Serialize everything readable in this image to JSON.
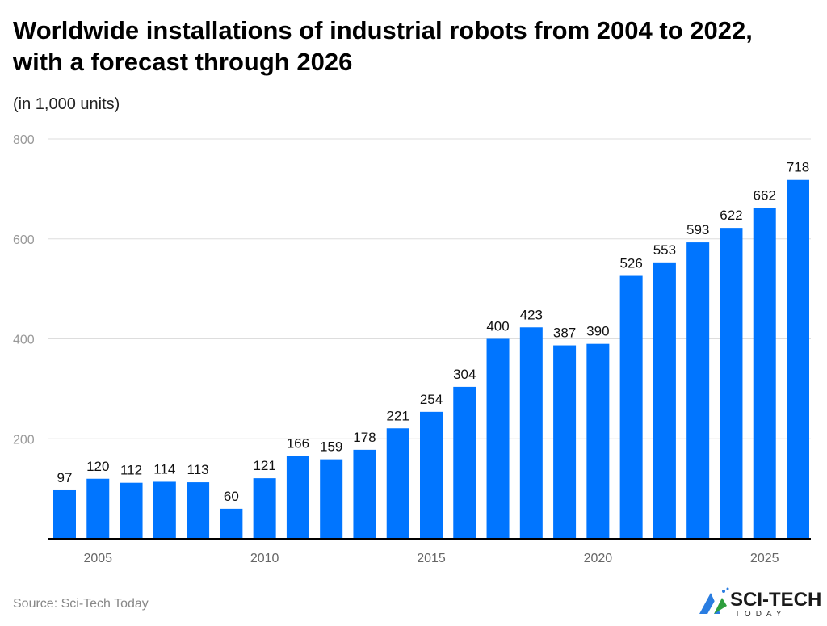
{
  "chart_data": {
    "type": "bar",
    "title": "Worldwide installations of industrial robots from 2004 to 2022, with a forecast through 2026",
    "subtitle": "(in 1,000 units)",
    "categories": [
      2004,
      2005,
      2006,
      2007,
      2008,
      2009,
      2010,
      2011,
      2012,
      2013,
      2014,
      2015,
      2016,
      2017,
      2018,
      2019,
      2020,
      2021,
      2022,
      2023,
      2024,
      2025,
      2026
    ],
    "values": [
      97,
      120,
      112,
      114,
      113,
      60,
      121,
      166,
      159,
      178,
      221,
      254,
      304,
      400,
      423,
      387,
      390,
      526,
      553,
      593,
      622,
      662,
      718
    ],
    "xticks": [
      "2005",
      "2010",
      "2015",
      "2020",
      "2025"
    ],
    "yticks": [
      "200",
      "400",
      "600",
      "800"
    ],
    "ylim": [
      0,
      800
    ],
    "grid": true,
    "bar_color": "#0075ff",
    "xlabel": "",
    "ylabel": ""
  },
  "footer": {
    "source": "Source: Sci-Tech Today",
    "logo_text": "SCI-TECH",
    "logo_subtext": "TODAY"
  }
}
